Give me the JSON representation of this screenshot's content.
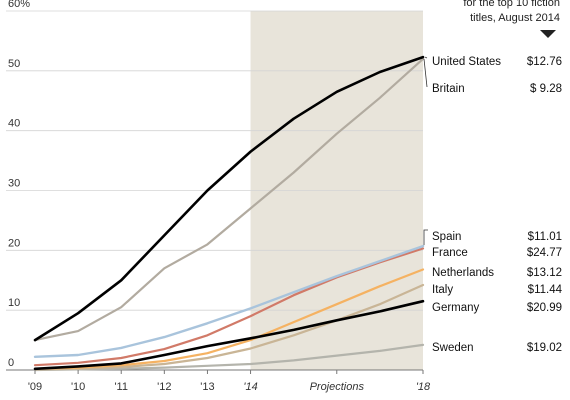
{
  "chart_data": {
    "type": "line",
    "ylim": [
      0,
      60
    ],
    "yticks": [
      "0",
      "10",
      "20",
      "30",
      "40",
      "50",
      "60%"
    ],
    "x": [
      2009,
      2010,
      2011,
      2012,
      2013,
      2014,
      2015,
      2016,
      2017,
      2018
    ],
    "xtick_labels": [
      {
        "x": 2009,
        "label": "'09"
      },
      {
        "x": 2010,
        "label": "'10"
      },
      {
        "x": 2011,
        "label": "'11"
      },
      {
        "x": 2012,
        "label": "'12"
      },
      {
        "x": 2013,
        "label": "'13"
      },
      {
        "x": 2014,
        "label": "'14",
        "italic": true
      },
      {
        "x": 2016,
        "label": "Projections",
        "italic": true
      },
      {
        "x": 2018,
        "label": "'18",
        "italic": true
      }
    ],
    "projection_range": [
      2014,
      2018
    ],
    "shade_color": "#e8e4da",
    "header_note": [
      "for the top 10 fiction",
      "titles, August 2014"
    ],
    "series": [
      {
        "name": "United States",
        "price": "$12.76",
        "color": "#000000",
        "width": 2.6,
        "values": [
          5,
          9.5,
          15,
          22.5,
          30,
          36.5,
          42,
          46.5,
          49.8,
          52.3
        ]
      },
      {
        "name": "Britain",
        "price": "$ 9.28",
        "color": "#b2aba0",
        "width": 2.2,
        "values": [
          5,
          6.5,
          10.5,
          17,
          21,
          27,
          33,
          39.5,
          45.5,
          52
        ]
      },
      {
        "name": "Spain",
        "price": "$11.01",
        "color": "#a9c4dc",
        "width": 2.4,
        "values": [
          2.2,
          2.5,
          3.7,
          5.5,
          7.8,
          10.3,
          13,
          15.7,
          18.2,
          20.7
        ]
      },
      {
        "name": "France",
        "price": "$24.77",
        "color": "#d17a68",
        "width": 2.2,
        "values": [
          0.8,
          1.2,
          2,
          3.5,
          5.8,
          9,
          12.5,
          15.5,
          18,
          20.3
        ]
      },
      {
        "name": "Netherlands",
        "price": "$13.12",
        "color": "#f5b262",
        "width": 2.2,
        "values": [
          0.2,
          0.4,
          0.8,
          1.5,
          2.8,
          5,
          8,
          11,
          14,
          16.8
        ]
      },
      {
        "name": "Italy",
        "price": "$11.44",
        "color": "#c9b596",
        "width": 2.2,
        "values": [
          0.1,
          0.2,
          0.5,
          1,
          2,
          3.6,
          5.8,
          8.3,
          11,
          14.2
        ]
      },
      {
        "name": "Germany",
        "price": "$20.99",
        "color": "#000000",
        "width": 2.6,
        "values": [
          0.2,
          0.6,
          1.1,
          2.5,
          4,
          5.3,
          6.7,
          8.3,
          9.8,
          11.5
        ]
      },
      {
        "name": "Sweden",
        "price": "$19.02",
        "color": "#b4b4ac",
        "width": 2.2,
        "values": [
          0,
          0.1,
          0.2,
          0.4,
          0.7,
          1,
          1.6,
          2.4,
          3.2,
          4.2
        ]
      }
    ]
  }
}
